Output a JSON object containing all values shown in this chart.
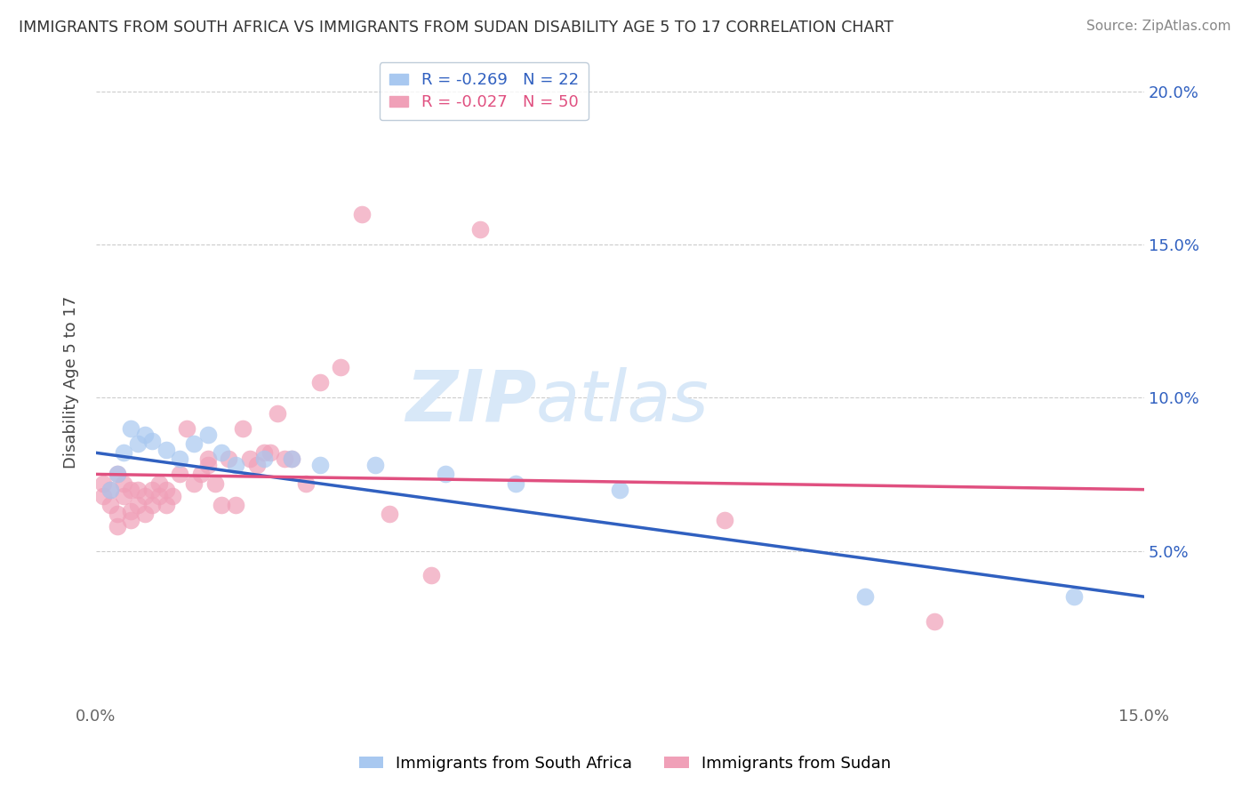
{
  "title": "IMMIGRANTS FROM SOUTH AFRICA VS IMMIGRANTS FROM SUDAN DISABILITY AGE 5 TO 17 CORRELATION CHART",
  "source": "Source: ZipAtlas.com",
  "ylabel": "Disability Age 5 to 17",
  "xlim": [
    0.0,
    0.15
  ],
  "ylim": [
    0.0,
    0.21
  ],
  "x_ticks": [
    0.0,
    0.05,
    0.1,
    0.15
  ],
  "x_tick_labels": [
    "0.0%",
    "",
    "",
    "15.0%"
  ],
  "y_ticks": [
    0.05,
    0.1,
    0.15,
    0.2
  ],
  "y_tick_labels_right": [
    "5.0%",
    "10.0%",
    "15.0%",
    "20.0%"
  ],
  "color_sa": "#a8c8f0",
  "color_sudan": "#f0a0b8",
  "line_color_sa": "#3060c0",
  "line_color_sudan": "#e05080",
  "R_sa": -0.269,
  "N_sa": 22,
  "R_sudan": -0.027,
  "N_sudan": 50,
  "sa_x": [
    0.002,
    0.003,
    0.004,
    0.005,
    0.006,
    0.007,
    0.008,
    0.01,
    0.012,
    0.014,
    0.016,
    0.018,
    0.02,
    0.024,
    0.028,
    0.032,
    0.04,
    0.05,
    0.06,
    0.075,
    0.11,
    0.14
  ],
  "sa_y": [
    0.07,
    0.075,
    0.082,
    0.09,
    0.085,
    0.088,
    0.086,
    0.083,
    0.08,
    0.085,
    0.088,
    0.082,
    0.078,
    0.08,
    0.08,
    0.078,
    0.078,
    0.075,
    0.072,
    0.07,
    0.035,
    0.035
  ],
  "sudan_x": [
    0.001,
    0.001,
    0.002,
    0.002,
    0.003,
    0.003,
    0.003,
    0.004,
    0.004,
    0.005,
    0.005,
    0.005,
    0.006,
    0.006,
    0.007,
    0.007,
    0.008,
    0.008,
    0.009,
    0.009,
    0.01,
    0.01,
    0.011,
    0.012,
    0.013,
    0.014,
    0.015,
    0.016,
    0.016,
    0.017,
    0.018,
    0.019,
    0.02,
    0.021,
    0.022,
    0.023,
    0.024,
    0.025,
    0.026,
    0.027,
    0.028,
    0.03,
    0.032,
    0.035,
    0.038,
    0.042,
    0.048,
    0.055,
    0.09,
    0.12
  ],
  "sudan_y": [
    0.068,
    0.072,
    0.065,
    0.07,
    0.058,
    0.062,
    0.075,
    0.068,
    0.072,
    0.06,
    0.063,
    0.07,
    0.065,
    0.07,
    0.062,
    0.068,
    0.065,
    0.07,
    0.068,
    0.072,
    0.065,
    0.07,
    0.068,
    0.075,
    0.09,
    0.072,
    0.075,
    0.078,
    0.08,
    0.072,
    0.065,
    0.08,
    0.065,
    0.09,
    0.08,
    0.078,
    0.082,
    0.082,
    0.095,
    0.08,
    0.08,
    0.072,
    0.105,
    0.11,
    0.16,
    0.062,
    0.042,
    0.155,
    0.06,
    0.027
  ],
  "watermark_zip": "ZIP",
  "watermark_atlas": "atlas",
  "watermark_color": "#d8e8f8",
  "background_color": "#ffffff",
  "legend_box_color": "#ffffff",
  "legend_border_color": "#b0c0d0"
}
